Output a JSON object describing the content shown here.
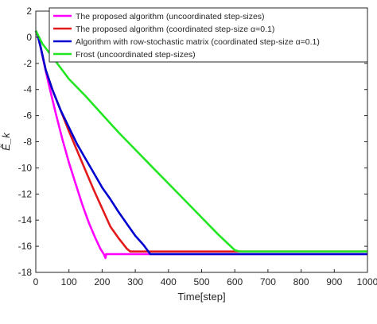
{
  "chart_data": {
    "type": "line",
    "xlabel": "Time[step]",
    "ylabel": "Ẽ_k",
    "xlim": [
      0,
      1000
    ],
    "ylim": [
      -18,
      2
    ],
    "xticks": [
      0,
      100,
      200,
      300,
      400,
      500,
      600,
      700,
      800,
      900,
      1000
    ],
    "yticks": [
      2,
      0,
      -2,
      -4,
      -6,
      -8,
      -10,
      -12,
      -14,
      -16,
      -18
    ],
    "grid": false,
    "legend_position": "top-right",
    "series": [
      {
        "name": "The proposed algorithm (uncoordinated step-sizes)",
        "color": "#ff00ff",
        "x": [
          0,
          5,
          12,
          25,
          40,
          60,
          80,
          100,
          120,
          140,
          160,
          180,
          195,
          205,
          210,
          212,
          220,
          1000
        ],
        "y": [
          0.5,
          0.2,
          -0.5,
          -2.0,
          -3.7,
          -5.8,
          -7.8,
          -9.6,
          -11.2,
          -12.8,
          -14.2,
          -15.4,
          -16.2,
          -16.6,
          -16.9,
          -16.6,
          -16.6,
          -16.6
        ]
      },
      {
        "name": "The proposed algorithm (coordinated step-size α=0.1)",
        "color": "#e31a1c",
        "x": [
          0,
          5,
          15,
          30,
          50,
          75,
          100,
          125,
          150,
          175,
          200,
          225,
          250,
          275,
          285,
          300,
          1000
        ],
        "y": [
          0.5,
          0.2,
          -0.8,
          -2.5,
          -4.0,
          -5.6,
          -7.2,
          -8.7,
          -10.2,
          -11.7,
          -13.1,
          -14.5,
          -15.4,
          -16.2,
          -16.4,
          -16.4,
          -16.4
        ]
      },
      {
        "name": "Algorithm with row-stochastic matrix (coordinated step-size α=0.1)",
        "color": "#0000d0",
        "x": [
          0,
          5,
          15,
          30,
          50,
          75,
          100,
          125,
          150,
          175,
          200,
          225,
          250,
          275,
          300,
          325,
          345,
          355,
          1000
        ],
        "y": [
          0.5,
          0.2,
          -0.8,
          -2.5,
          -4.0,
          -5.6,
          -6.9,
          -8.2,
          -9.3,
          -10.4,
          -11.5,
          -12.4,
          -13.4,
          -14.3,
          -15.2,
          -15.9,
          -16.6,
          -16.6,
          -16.6
        ]
      },
      {
        "name": "Frost (uncoordinated step-sizes)",
        "color": "#22e622",
        "x": [
          0,
          20,
          50,
          100,
          150,
          200,
          250,
          300,
          350,
          400,
          450,
          500,
          550,
          600,
          615,
          630,
          1000
        ],
        "y": [
          0.5,
          -0.5,
          -1.5,
          -3.2,
          -4.5,
          -5.9,
          -7.3,
          -8.6,
          -9.9,
          -11.2,
          -12.5,
          -13.8,
          -15.1,
          -16.3,
          -16.4,
          -16.4,
          -16.4
        ]
      }
    ]
  }
}
